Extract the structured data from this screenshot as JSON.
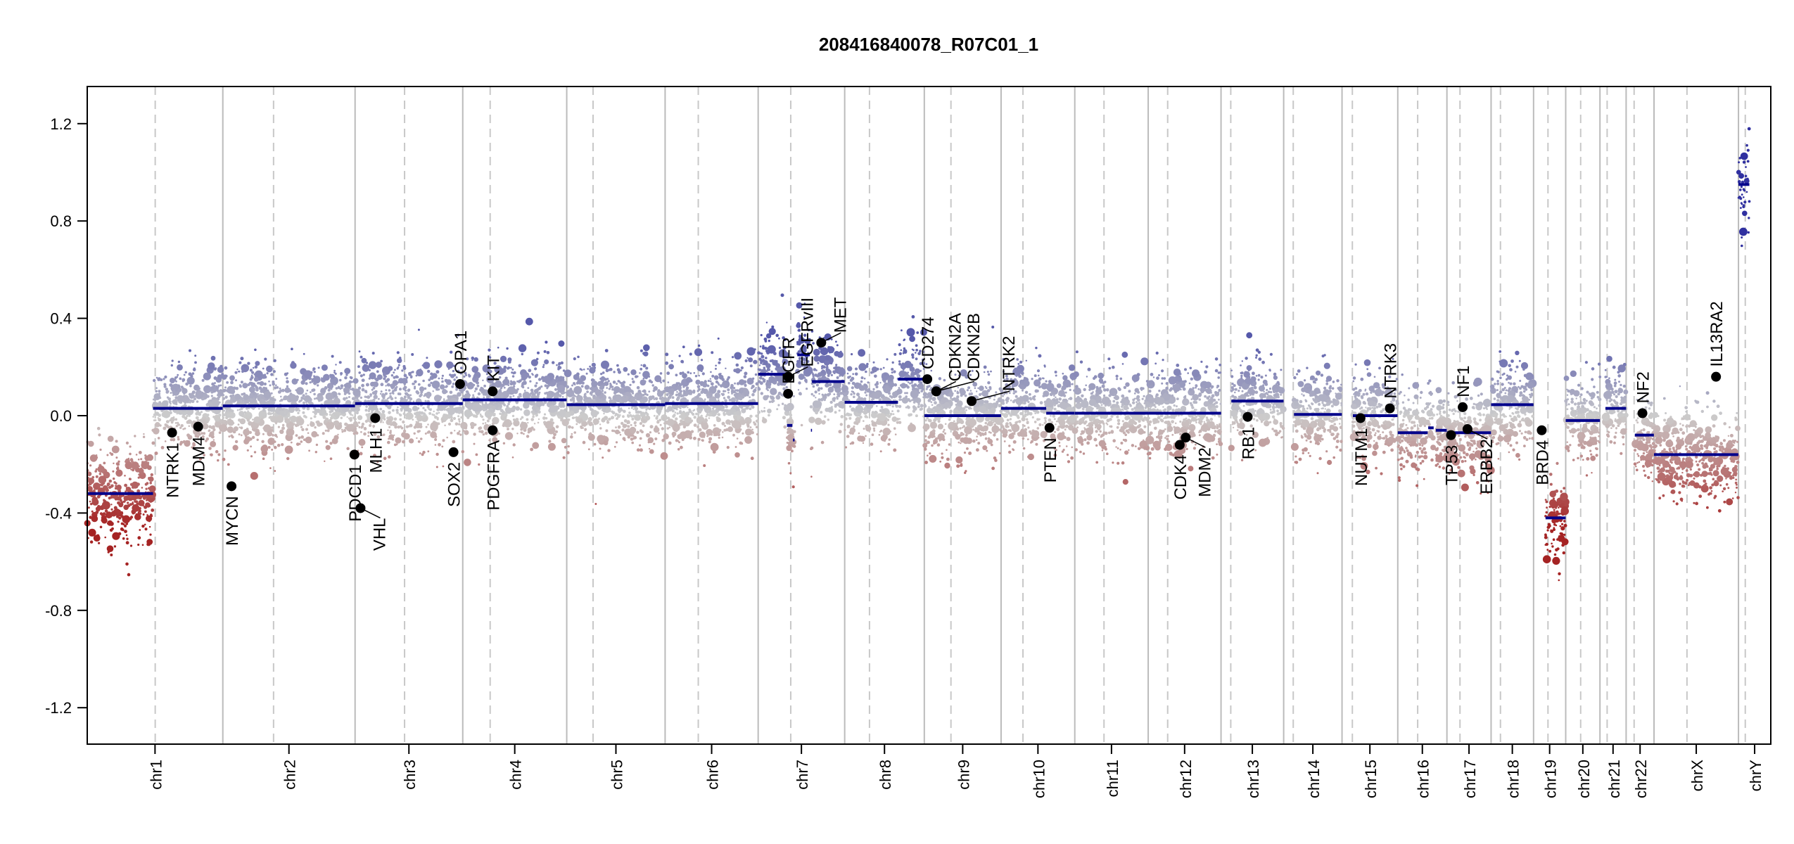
{
  "chart_data": {
    "type": "scatter",
    "title": "208416840078_R07C01_1",
    "xlabel": "",
    "ylabel": "",
    "ylim": [
      -1.35,
      1.35
    ],
    "yticks": [
      "-1.2",
      "-0.8",
      "-0.4",
      "0.0",
      "0.4",
      "0.8",
      "1.2"
    ],
    "ytick_values": [
      -1.2,
      -0.8,
      -0.4,
      0.0,
      0.4,
      0.8,
      1.2
    ],
    "grid": false,
    "chromosomes": [
      {
        "name": "chr1",
        "length_mb": 249.3,
        "centromere_mb": 125
      },
      {
        "name": "chr2",
        "length_mb": 243.2,
        "centromere_mb": 93.3
      },
      {
        "name": "chr3",
        "length_mb": 198.0,
        "centromere_mb": 91
      },
      {
        "name": "chr4",
        "length_mb": 191.2,
        "centromere_mb": 50.4
      },
      {
        "name": "chr5",
        "length_mb": 180.9,
        "centromere_mb": 48.4
      },
      {
        "name": "chr6",
        "length_mb": 171.1,
        "centromere_mb": 61
      },
      {
        "name": "chr7",
        "length_mb": 159.1,
        "centromere_mb": 59.9
      },
      {
        "name": "chr8",
        "length_mb": 146.4,
        "centromere_mb": 45.6
      },
      {
        "name": "chr9",
        "length_mb": 141.2,
        "centromere_mb": 49
      },
      {
        "name": "chr10",
        "length_mb": 135.5,
        "centromere_mb": 40.2
      },
      {
        "name": "chr11",
        "length_mb": 135.0,
        "centromere_mb": 53.7
      },
      {
        "name": "chr12",
        "length_mb": 133.9,
        "centromere_mb": 35.8
      },
      {
        "name": "chr13",
        "length_mb": 115.2,
        "centromere_mb": 17.9
      },
      {
        "name": "chr14",
        "length_mb": 107.3,
        "centromere_mb": 17.6
      },
      {
        "name": "chr15",
        "length_mb": 102.5,
        "centromere_mb": 19
      },
      {
        "name": "chr16",
        "length_mb": 90.4,
        "centromere_mb": 36.6
      },
      {
        "name": "chr17",
        "length_mb": 81.2,
        "centromere_mb": 24
      },
      {
        "name": "chr18",
        "length_mb": 78.1,
        "centromere_mb": 17.2
      },
      {
        "name": "chr19",
        "length_mb": 59.1,
        "centromere_mb": 26.5
      },
      {
        "name": "chr20",
        "length_mb": 63.0,
        "centromere_mb": 27.5
      },
      {
        "name": "chr21",
        "length_mb": 48.1,
        "centromere_mb": 13.2
      },
      {
        "name": "chr22",
        "length_mb": 51.3,
        "centromere_mb": 14.7
      },
      {
        "name": "chrX",
        "length_mb": 155.3,
        "centromere_mb": 60.6
      },
      {
        "name": "chrY",
        "length_mb": 59.4,
        "centromere_mb": 12.5
      }
    ],
    "segments": [
      {
        "chr": "chr1",
        "start": 0,
        "end": 121,
        "value": -0.32
      },
      {
        "chr": "chr1",
        "start": 121,
        "end": 249,
        "value": 0.03
      },
      {
        "chr": "chr2",
        "start": 0,
        "end": 243,
        "value": 0.04
      },
      {
        "chr": "chr3",
        "start": 0,
        "end": 198,
        "value": 0.05
      },
      {
        "chr": "chr4",
        "start": 0,
        "end": 191,
        "value": 0.065
      },
      {
        "chr": "chr5",
        "start": 0,
        "end": 181,
        "value": 0.045
      },
      {
        "chr": "chr6",
        "start": 0,
        "end": 171,
        "value": 0.05
      },
      {
        "chr": "chr7",
        "start": 0,
        "end": 53,
        "value": 0.17
      },
      {
        "chr": "chr7",
        "start": 53,
        "end": 63,
        "value": -0.04
      },
      {
        "chr": "chr7",
        "start": 64,
        "end": 67,
        "value": -0.1
      },
      {
        "chr": "chr7",
        "start": 72,
        "end": 95,
        "value": 0.25
      },
      {
        "chr": "chr7",
        "start": 97,
        "end": 99,
        "value": -0.06
      },
      {
        "chr": "chr7",
        "start": 99,
        "end": 159,
        "value": 0.14
      },
      {
        "chr": "chr8",
        "start": 0,
        "end": 98,
        "value": 0.055
      },
      {
        "chr": "chr8",
        "start": 98,
        "end": 146,
        "value": 0.15
      },
      {
        "chr": "chr9",
        "start": 0,
        "end": 141,
        "value": 0.0
      },
      {
        "chr": "chr10",
        "start": 0,
        "end": 83,
        "value": 0.03
      },
      {
        "chr": "chr10",
        "start": 83,
        "end": 135,
        "value": 0.01
      },
      {
        "chr": "chr11",
        "start": 0,
        "end": 135,
        "value": 0.01
      },
      {
        "chr": "chr12",
        "start": 0,
        "end": 134,
        "value": 0.01
      },
      {
        "chr": "chr13",
        "start": 19,
        "end": 115,
        "value": 0.06
      },
      {
        "chr": "chr14",
        "start": 19,
        "end": 107,
        "value": 0.005
      },
      {
        "chr": "chr15",
        "start": 20,
        "end": 102,
        "value": 0.0
      },
      {
        "chr": "chr16",
        "start": 0,
        "end": 55,
        "value": -0.07
      },
      {
        "chr": "chr16",
        "start": 56,
        "end": 66,
        "value": -0.05
      },
      {
        "chr": "chr16",
        "start": 70,
        "end": 90,
        "value": -0.06
      },
      {
        "chr": "chr17",
        "start": 0,
        "end": 81,
        "value": -0.07
      },
      {
        "chr": "chr18",
        "start": 0,
        "end": 78,
        "value": 0.045
      },
      {
        "chr": "chr19",
        "start": 22,
        "end": 59,
        "value": -0.42
      },
      {
        "chr": "chr20",
        "start": 0,
        "end": 63,
        "value": -0.02
      },
      {
        "chr": "chr21",
        "start": 10,
        "end": 48,
        "value": 0.03
      },
      {
        "chr": "chr22",
        "start": 16,
        "end": 51,
        "value": -0.08
      },
      {
        "chr": "chrX",
        "start": 0,
        "end": 155,
        "value": -0.16
      },
      {
        "chr": "chrY",
        "start": 0,
        "end": 20,
        "value": 0.95
      }
    ],
    "genes": [
      {
        "name": "NTRK1",
        "chr": "chr1",
        "pos": 156,
        "value": -0.07
      },
      {
        "name": "MDM4",
        "chr": "chr1",
        "pos": 204,
        "value": -0.045
      },
      {
        "name": "MYCN",
        "chr": "chr2",
        "pos": 16,
        "value": -0.29
      },
      {
        "name": "PDCD1",
        "chr": "chr2",
        "pos": 242,
        "value": -0.16
      },
      {
        "name": "VHL",
        "chr": "chr3",
        "pos": 10,
        "value": -0.38
      },
      {
        "name": "MLH1",
        "chr": "chr3",
        "pos": 37,
        "value": -0.01
      },
      {
        "name": "SOX2",
        "chr": "chr3",
        "pos": 181,
        "value": -0.15
      },
      {
        "name": "OPA1",
        "chr": "chr3",
        "pos": 193,
        "value": 0.13
      },
      {
        "name": "KIT",
        "chr": "chr4",
        "pos": 55,
        "value": 0.1
      },
      {
        "name": "PDGFRA",
        "chr": "chr4",
        "pos": 55,
        "value": -0.06
      },
      {
        "name": "EGFR",
        "chr": "chr7",
        "pos": 55,
        "value": 0.09
      },
      {
        "name": "EGFRvIII",
        "chr": "chr7",
        "pos": 55.2,
        "value": 0.16
      },
      {
        "name": "MET",
        "chr": "chr7",
        "pos": 116,
        "value": 0.3
      },
      {
        "name": "CD274",
        "chr": "chr9",
        "pos": 5.5,
        "value": 0.15
      },
      {
        "name": "CDKN2A",
        "chr": "chr9",
        "pos": 21.9,
        "value": 0.1
      },
      {
        "name": "CDKN2B",
        "chr": "chr9",
        "pos": 22.0,
        "value": 0.1
      },
      {
        "name": "NTRK2",
        "chr": "chr9",
        "pos": 87,
        "value": 0.06
      },
      {
        "name": "PTEN",
        "chr": "chr10",
        "pos": 89,
        "value": -0.05
      },
      {
        "name": "CDK4",
        "chr": "chr12",
        "pos": 58,
        "value": -0.12
      },
      {
        "name": "MDM2",
        "chr": "chr12",
        "pos": 69,
        "value": -0.09
      },
      {
        "name": "RB1",
        "chr": "chr13",
        "pos": 49,
        "value": -0.005
      },
      {
        "name": "NUTM1",
        "chr": "chr15",
        "pos": 34,
        "value": -0.01
      },
      {
        "name": "NTRK3",
        "chr": "chr15",
        "pos": 88,
        "value": 0.03
      },
      {
        "name": "TP53",
        "chr": "chr17",
        "pos": 7.5,
        "value": -0.08
      },
      {
        "name": "NF1",
        "chr": "chr17",
        "pos": 29,
        "value": 0.035
      },
      {
        "name": "ERBB2",
        "chr": "chr17",
        "pos": 37.8,
        "value": -0.055
      },
      {
        "name": "BRD4",
        "chr": "chr19",
        "pos": 15,
        "value": -0.06
      },
      {
        "name": "NF2",
        "chr": "chr22",
        "pos": 30,
        "value": 0.01
      },
      {
        "name": "IL13RA2",
        "chr": "chrX",
        "pos": 114,
        "value": 0.16
      }
    ],
    "colors": {
      "gain": "#4b4fa8",
      "loss": "#a02222",
      "neutral": "#cccccc",
      "segment": "#00008b",
      "boundary": "#bbbbbb"
    }
  }
}
